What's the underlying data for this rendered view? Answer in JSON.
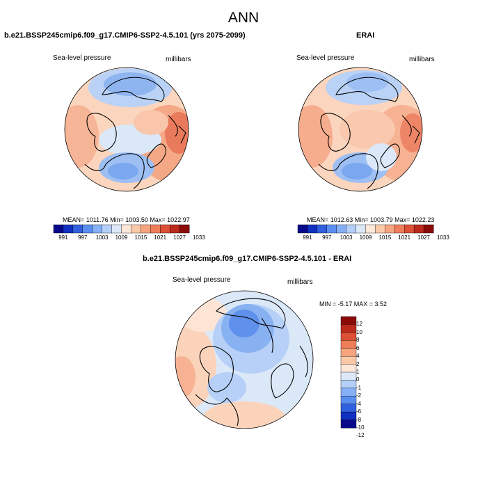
{
  "figure": {
    "title": "ANN"
  },
  "panels": [
    {
      "title": "b.e21.BSSP245cmip6.f09_g17.CMIP6-SSP2-4.5.101 (yrs 2075-2099)",
      "variable_label": "Sea-level pressure",
      "units_label": "millibars",
      "stats_text": "MEAN= 1011.76  Min= 1003.50  Max= 1022.97",
      "colorbar_ticks": [
        "991",
        "997",
        "1003",
        "1009",
        "1015",
        "1021",
        "1027",
        "1033"
      ]
    },
    {
      "title": "ERAI",
      "variable_label": "Sea-level pressure",
      "units_label": "millibars",
      "stats_text": "MEAN= 1012.63  Min= 1003.79  Max= 1022.23",
      "colorbar_ticks": [
        "991",
        "997",
        "1003",
        "1009",
        "1015",
        "1021",
        "1027",
        "1033"
      ]
    },
    {
      "title": "b.e21.BSSP245cmip6.f09_g17.CMIP6-SSP2-4.5.101 - ERAI",
      "variable_label": "Sea-level pressure",
      "units_label": "millibars",
      "stats_text": "MIN =  -5.17 MAX =   3.52",
      "colorbar_ticks": [
        "12",
        "10",
        "8",
        "6",
        "4",
        "2",
        "1",
        "0",
        "-1",
        "-2",
        "-4",
        "-6",
        "-8",
        "-10",
        "-12"
      ]
    }
  ],
  "palettes": {
    "absolute": [
      "#08088a",
      "#1030c0",
      "#3060dd",
      "#5a8ef0",
      "#86b0f5",
      "#b4cff8",
      "#dce8f8",
      "#fde7d8",
      "#fbc9a8",
      "#f7a57f",
      "#ee7d5a",
      "#dd5036",
      "#bb2a1c",
      "#8a0a0a"
    ],
    "difference": [
      "#8a0a0a",
      "#bb2a1c",
      "#dd5036",
      "#ee7d5a",
      "#f7a57f",
      "#fbc9a8",
      "#fde7d8",
      "#dce8f8",
      "#b4cff8",
      "#86b0f5",
      "#5a8ef0",
      "#3060dd",
      "#1030c0",
      "#08088a"
    ]
  }
}
